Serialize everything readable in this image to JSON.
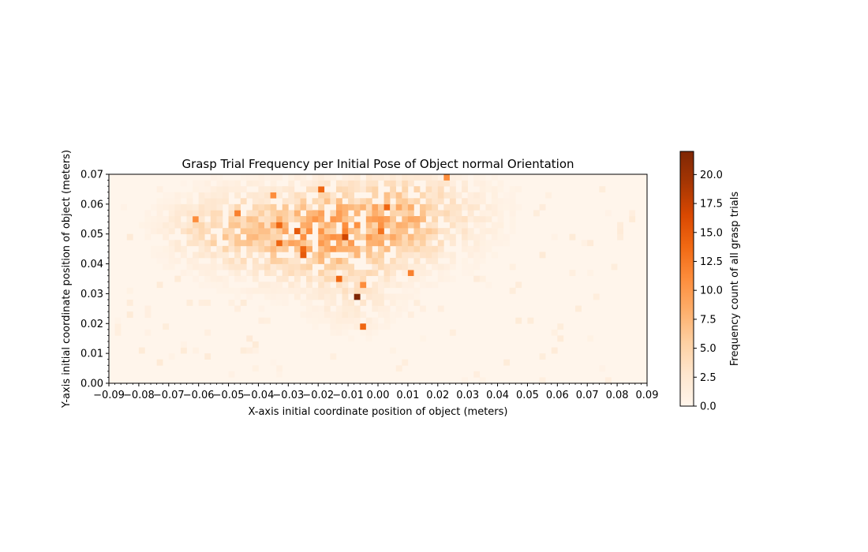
{
  "chart_data": {
    "type": "heatmap",
    "title": "Grasp Trial Frequency per Initial Pose of Object normal Orientation",
    "xlabel": "X-axis initial coordinate position of object (meters)",
    "ylabel": "Y-axis initial coordinate position of object (meters)",
    "xlim": [
      -0.09,
      0.09
    ],
    "ylim": [
      0.0,
      0.07
    ],
    "x_ticks": [
      "−0.09",
      "−0.08",
      "−0.07",
      "−0.06",
      "−0.05",
      "−0.04",
      "−0.03",
      "−0.02",
      "−0.01",
      "0.00",
      "0.01",
      "0.02",
      "0.03",
      "0.04",
      "0.05",
      "0.06",
      "0.07",
      "0.08",
      "0.09"
    ],
    "y_ticks": [
      "0.00",
      "0.01",
      "0.02",
      "0.03",
      "0.04",
      "0.05",
      "0.06",
      "0.07"
    ],
    "bins": {
      "nx": 90,
      "ny": 35,
      "cell_size_m": 0.002
    },
    "colormap": "Oranges",
    "colormap_stops": [
      "#fff5eb",
      "#fee6ce",
      "#fdd0a2",
      "#fdae6b",
      "#fd8d3c",
      "#f16913",
      "#d94801",
      "#a63603",
      "#7f2704"
    ],
    "colorbar": {
      "label": "Frequency count of all grasp trials",
      "range": [
        0,
        22
      ],
      "ticks": [
        "0.0",
        "2.5",
        "5.0",
        "7.5",
        "10.0",
        "12.5",
        "15.0",
        "17.5",
        "20.0"
      ]
    },
    "peak_cells": [
      {
        "x": -0.007,
        "y": 0.029,
        "value": 22
      },
      {
        "x": -0.011,
        "y": 0.049,
        "value": 17
      },
      {
        "x": -0.025,
        "y": 0.043,
        "value": 15
      },
      {
        "x": -0.025,
        "y": 0.045,
        "value": 14
      },
      {
        "x": -0.027,
        "y": 0.051,
        "value": 15
      },
      {
        "x": -0.033,
        "y": 0.053,
        "value": 14
      },
      {
        "x": -0.033,
        "y": 0.047,
        "value": 14
      },
      {
        "x": -0.019,
        "y": 0.065,
        "value": 14
      },
      {
        "x": -0.013,
        "y": 0.035,
        "value": 14
      },
      {
        "x": -0.005,
        "y": 0.019,
        "value": 14
      },
      {
        "x": 0.003,
        "y": 0.059,
        "value": 14
      },
      {
        "x": 0.001,
        "y": 0.051,
        "value": 13
      },
      {
        "x": -0.047,
        "y": 0.057,
        "value": 12
      },
      {
        "x": -0.061,
        "y": 0.055,
        "value": 11
      },
      {
        "x": 0.011,
        "y": 0.037,
        "value": 12
      },
      {
        "x": 0.023,
        "y": 0.069,
        "value": 11
      },
      {
        "x": -0.035,
        "y": 0.063,
        "value": 11
      },
      {
        "x": -0.005,
        "y": 0.033,
        "value": 11
      }
    ]
  }
}
